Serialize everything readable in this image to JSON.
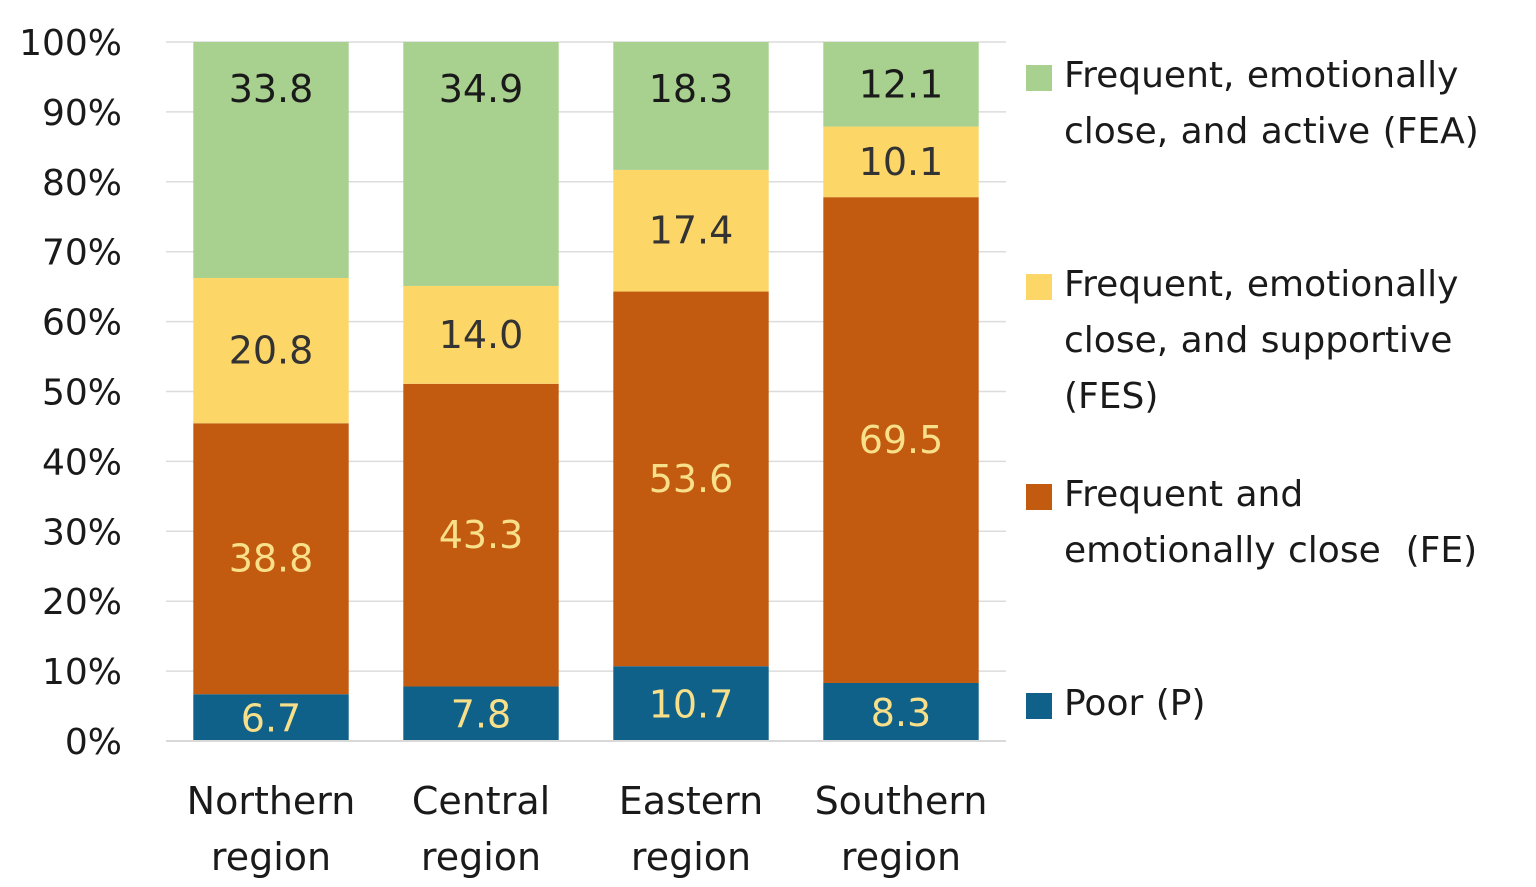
{
  "chart_data": {
    "type": "bar",
    "stacked": true,
    "percent": true,
    "title": "",
    "xlabel": "",
    "ylabel": "",
    "ylim": [
      0,
      100
    ],
    "y_ticks": [
      "0%",
      "10%",
      "20%",
      "30%",
      "40%",
      "50%",
      "60%",
      "70%",
      "80%",
      "90%",
      "100%"
    ],
    "grid": true,
    "legend_position": "right",
    "categories": [
      "Northern region",
      "Central region",
      "Eastern region",
      "Southern region"
    ],
    "series": [
      {
        "name": "Poor (P)",
        "color": "#0f6189",
        "label_color": "#f8df89",
        "values": [
          6.7,
          7.8,
          10.7,
          8.3
        ],
        "labels": [
          "6.7",
          "7.8",
          "10.7",
          "8.3"
        ]
      },
      {
        "name": "Frequent and emotionally close  (FE)",
        "color": "#c25b10",
        "label_color": "#f8df89",
        "values": [
          38.8,
          43.3,
          53.6,
          69.5
        ],
        "labels": [
          "38.8",
          "43.3",
          "53.6",
          "69.5"
        ]
      },
      {
        "name": "Frequent, emotionally close, and supportive (FES)",
        "color": "#fcd768",
        "label_color": "#333333",
        "values": [
          20.8,
          14.0,
          17.4,
          10.1
        ],
        "labels": [
          "20.8",
          "14.0",
          "17.4",
          "10.1"
        ]
      },
      {
        "name": "Frequent, emotionally close, and active (FEA)",
        "color": "#a8d18f",
        "label_color": "#1a1a1a",
        "values": [
          33.8,
          34.9,
          18.3,
          12.1
        ],
        "labels": [
          "33.8",
          "34.9",
          "18.3",
          "12.1"
        ]
      }
    ]
  }
}
